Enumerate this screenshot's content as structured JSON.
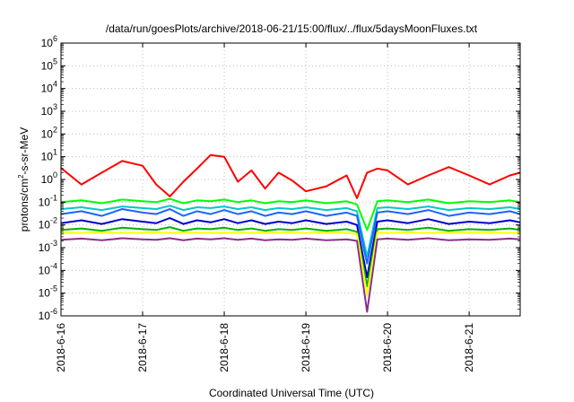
{
  "chart_data": {
    "type": "line",
    "title": "/data/run/goesPlots/archive/2018-06-21/15:00/flux/../flux/5daysMoonFluxes.txt",
    "xlabel": "Coordinated Universal Time (UTC)",
    "ylabel": {
      "pre": "protons/cm",
      "sup": "2",
      "post": "-s-sr-MeV"
    },
    "x_scale": "time",
    "y_scale": "log",
    "xlim": [
      "2018-06-16T00:00",
      "2018-06-21T15:00"
    ],
    "ylim": [
      1e-06,
      1000000.0
    ],
    "grid": true,
    "legend": "none",
    "x_ticks": [
      "2018-6-16",
      "2018-6-17",
      "2018-6-18",
      "2018-6-19",
      "2018-6-20",
      "2018-6-21"
    ],
    "y_ticks": [
      {
        "base": "10",
        "exp": "6"
      },
      {
        "base": "10",
        "exp": "5"
      },
      {
        "base": "10",
        "exp": "4"
      },
      {
        "base": "10",
        "exp": "3"
      },
      {
        "base": "10",
        "exp": "2"
      },
      {
        "base": "10",
        "exp": "1"
      },
      {
        "base": "10",
        "exp": "0"
      },
      {
        "base": "10",
        "exp": "-1"
      },
      {
        "base": "10",
        "exp": "-2"
      },
      {
        "base": "10",
        "exp": "-3"
      },
      {
        "base": "10",
        "exp": "-4"
      },
      {
        "base": "10",
        "exp": "-5"
      },
      {
        "base": "10",
        "exp": "-6"
      }
    ],
    "x_times": [
      "2018-06-16T00:00",
      "2018-06-16T06:00",
      "2018-06-16T12:00",
      "2018-06-16T18:00",
      "2018-06-17T00:00",
      "2018-06-17T04:00",
      "2018-06-17T08:00",
      "2018-06-17T12:00",
      "2018-06-17T16:00",
      "2018-06-17T20:00",
      "2018-06-18T00:00",
      "2018-06-18T04:00",
      "2018-06-18T08:00",
      "2018-06-18T12:00",
      "2018-06-18T16:00",
      "2018-06-18T20:00",
      "2018-06-19T00:00",
      "2018-06-19T06:00",
      "2018-06-19T12:00",
      "2018-06-19T15:00",
      "2018-06-19T18:00",
      "2018-06-19T21:00",
      "2018-06-20T00:00",
      "2018-06-20T06:00",
      "2018-06-20T12:00",
      "2018-06-20T18:00",
      "2018-06-21T00:00",
      "2018-06-21T06:00",
      "2018-06-21T12:00",
      "2018-06-21T15:00"
    ],
    "series": [
      {
        "color": "#ff0000",
        "values": [
          3.2,
          0.6,
          2.0,
          6.5,
          4.0,
          0.6,
          0.18,
          0.8,
          3.0,
          12.0,
          10.0,
          0.8,
          2.5,
          0.4,
          2.0,
          0.9,
          0.3,
          0.5,
          1.5,
          0.15,
          2.0,
          3.0,
          2.5,
          0.6,
          1.5,
          3.5,
          1.5,
          0.6,
          1.5,
          2.0
        ]
      },
      {
        "color": "#00ff00",
        "values": [
          0.1,
          0.12,
          0.09,
          0.13,
          0.11,
          0.1,
          0.14,
          0.09,
          0.12,
          0.11,
          0.13,
          0.1,
          0.12,
          0.09,
          0.11,
          0.1,
          0.12,
          0.09,
          0.11,
          0.08,
          0.006,
          0.11,
          0.12,
          0.1,
          0.13,
          0.09,
          0.11,
          0.1,
          0.12,
          0.1
        ]
      },
      {
        "color": "#00c8c8",
        "values": [
          0.05,
          0.06,
          0.045,
          0.065,
          0.055,
          0.05,
          0.07,
          0.045,
          0.06,
          0.055,
          0.065,
          0.05,
          0.06,
          0.045,
          0.055,
          0.05,
          0.06,
          0.045,
          0.055,
          0.04,
          0.0004,
          0.055,
          0.06,
          0.05,
          0.065,
          0.045,
          0.055,
          0.05,
          0.06,
          0.05
        ]
      },
      {
        "color": "#1e64ff",
        "values": [
          0.03,
          0.04,
          0.025,
          0.05,
          0.035,
          0.03,
          0.05,
          0.025,
          0.04,
          0.03,
          0.045,
          0.03,
          0.04,
          0.025,
          0.035,
          0.03,
          0.04,
          0.025,
          0.035,
          0.025,
          0.0002,
          0.035,
          0.04,
          0.03,
          0.045,
          0.025,
          0.035,
          0.03,
          0.04,
          0.03
        ]
      },
      {
        "color": "#0000c8",
        "values": [
          0.012,
          0.016,
          0.011,
          0.018,
          0.014,
          0.012,
          0.02,
          0.011,
          0.016,
          0.013,
          0.018,
          0.012,
          0.016,
          0.011,
          0.014,
          0.012,
          0.016,
          0.011,
          0.014,
          0.01,
          5e-05,
          0.014,
          0.016,
          0.012,
          0.018,
          0.011,
          0.014,
          0.012,
          0.016,
          0.013
        ]
      },
      {
        "color": "#00b400",
        "values": [
          0.006,
          0.007,
          0.0055,
          0.0075,
          0.0065,
          0.006,
          0.008,
          0.0055,
          0.007,
          0.0065,
          0.0075,
          0.006,
          0.007,
          0.0055,
          0.0065,
          0.006,
          0.007,
          0.0055,
          0.0065,
          0.005,
          2e-05,
          0.0065,
          0.007,
          0.006,
          0.0075,
          0.0055,
          0.0065,
          0.006,
          0.007,
          0.006
        ]
      },
      {
        "color": "#ffff00",
        "values": [
          0.0045,
          0.0045,
          0.0045,
          0.0045,
          0.0045,
          0.0045,
          0.0045,
          0.0045,
          0.0045,
          0.0045,
          0.0045,
          0.0045,
          0.0045,
          0.0045,
          0.0045,
          0.0045,
          0.0045,
          0.0045,
          0.0045,
          0.004,
          8e-06,
          0.0045,
          0.0045,
          0.0045,
          0.0045,
          0.0045,
          0.0045,
          0.0045,
          0.0045,
          0.0045
        ]
      },
      {
        "color": "#8c2d8c",
        "values": [
          0.0022,
          0.0025,
          0.0021,
          0.0026,
          0.0023,
          0.0022,
          0.0026,
          0.0021,
          0.0025,
          0.0023,
          0.0026,
          0.0022,
          0.0025,
          0.0021,
          0.0023,
          0.0022,
          0.0025,
          0.0021,
          0.0023,
          0.002,
          1.5e-06,
          0.0023,
          0.0025,
          0.0022,
          0.0026,
          0.0021,
          0.0023,
          0.0022,
          0.0025,
          0.0023
        ]
      }
    ]
  }
}
